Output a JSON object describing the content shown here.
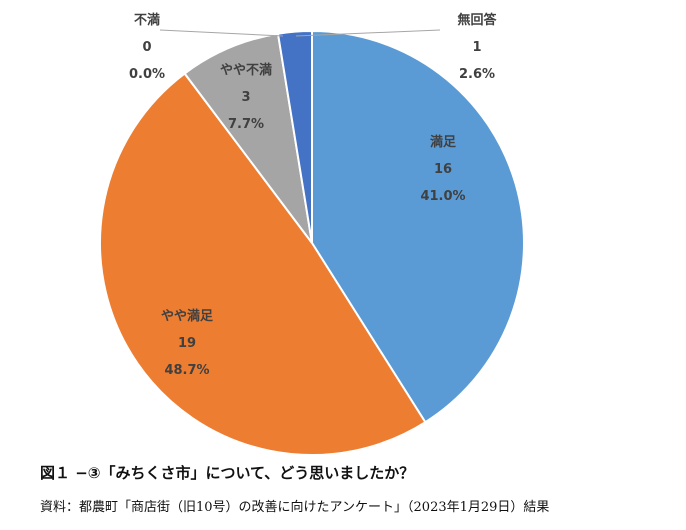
{
  "chart_data": {
    "type": "pie",
    "title": "",
    "start_angle_deg": 0,
    "direction": "clockwise",
    "colors": {
      "manzoku": "#5B9BD5",
      "yaya_manzoku": "#ED7D31",
      "yaya_fuman": "#A5A5A5",
      "fuman": "#FFC000",
      "mukaito": "#4472C4"
    },
    "slices": [
      {
        "key": "manzoku",
        "label": "満足",
        "value": 16,
        "percent": "41.0%"
      },
      {
        "key": "yaya_manzoku",
        "label": "やや満足",
        "value": 19,
        "percent": "48.7%"
      },
      {
        "key": "yaya_fuman",
        "label": "やや不満",
        "value": 3,
        "percent": "7.7%"
      },
      {
        "key": "fuman",
        "label": "不満",
        "value": 0,
        "percent": "0.0%"
      },
      {
        "key": "mukaito",
        "label": "無回答",
        "value": 1,
        "percent": "2.6%"
      }
    ]
  },
  "caption": "図１ −③「みちくさ市」について、どう思いましたか？",
  "source": "資料：都農町「商店街（旧10号）の改善に向けたアンケート」（2023年1月29日）結果"
}
